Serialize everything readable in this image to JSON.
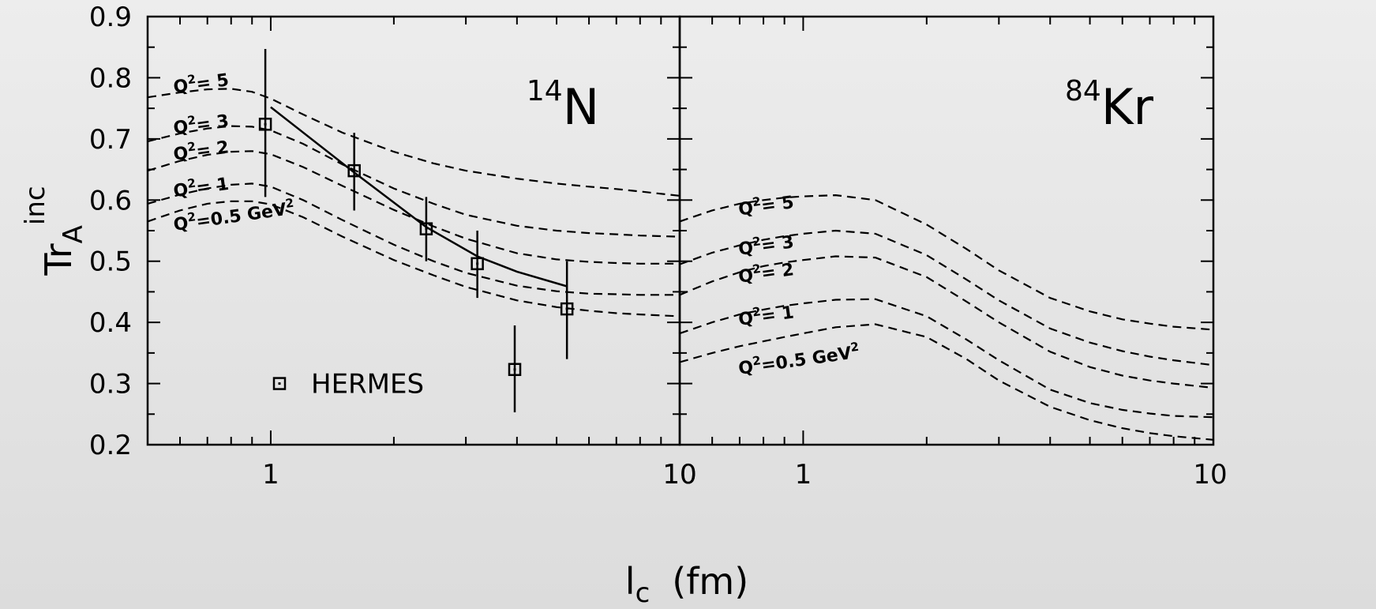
{
  "chart_data": [
    {
      "panel": "left",
      "type": "line",
      "annotation_base": "N",
      "annotation_sup": "14",
      "xscale": "log",
      "xlim": [
        0.5,
        10
      ],
      "ylim": [
        0.2,
        0.9
      ],
      "x_tick_labels": [
        "1",
        "10"
      ],
      "y_tick_labels": [
        "0.2",
        "0.3",
        "0.4",
        "0.5",
        "0.6",
        "0.7",
        "0.8",
        "0.9"
      ],
      "ylabel_base": "Tr",
      "ylabel_sub": "A",
      "ylabel_sup": "inc",
      "legend_label": "HERMES",
      "curves": [
        {
          "q2": "5",
          "label_prefix": "Q",
          "label_sup": "2",
          "label_suffix": "=  5",
          "x": [
            0.5,
            0.6,
            0.7,
            0.8,
            0.9,
            1.0,
            1.2,
            1.5,
            2,
            2.5,
            3,
            4,
            5,
            6,
            7,
            8,
            10
          ],
          "y": [
            0.768,
            0.776,
            0.781,
            0.782,
            0.777,
            0.766,
            0.74,
            0.71,
            0.679,
            0.66,
            0.648,
            0.635,
            0.627,
            0.622,
            0.618,
            0.614,
            0.607
          ]
        },
        {
          "q2": "3",
          "label_prefix": "Q",
          "label_sup": "2",
          "label_suffix": "=  3",
          "x": [
            0.5,
            0.6,
            0.7,
            0.8,
            0.9,
            1.0,
            1.2,
            1.5,
            2,
            2.5,
            3,
            4,
            5,
            6,
            7,
            8,
            10
          ],
          "y": [
            0.696,
            0.709,
            0.717,
            0.721,
            0.72,
            0.714,
            0.692,
            0.658,
            0.619,
            0.594,
            0.576,
            0.558,
            0.55,
            0.546,
            0.544,
            0.542,
            0.54
          ]
        },
        {
          "q2": "2",
          "label_prefix": "Q",
          "label_sup": "2",
          "label_suffix": "=  2",
          "x": [
            0.5,
            0.6,
            0.7,
            0.8,
            0.9,
            1.0,
            1.2,
            1.5,
            2,
            2.5,
            3,
            4,
            5,
            6,
            7,
            8,
            10
          ],
          "y": [
            0.648,
            0.664,
            0.674,
            0.679,
            0.68,
            0.675,
            0.654,
            0.623,
            0.584,
            0.557,
            0.537,
            0.513,
            0.503,
            0.499,
            0.497,
            0.496,
            0.496
          ]
        },
        {
          "q2": "1",
          "label_prefix": "Q",
          "label_sup": "2",
          "label_suffix": "=  1",
          "x": [
            0.5,
            0.6,
            0.7,
            0.8,
            0.9,
            1.0,
            1.2,
            1.5,
            2,
            2.5,
            3,
            4,
            5,
            6,
            7,
            8,
            10
          ],
          "y": [
            0.594,
            0.609,
            0.619,
            0.625,
            0.627,
            0.622,
            0.6,
            0.567,
            0.527,
            0.5,
            0.481,
            0.46,
            0.451,
            0.447,
            0.446,
            0.445,
            0.445
          ]
        },
        {
          "q2": "0.5",
          "label_prefix": "Q",
          "label_sup": "2",
          "label_suffix": "=0.5  GeV",
          "label_unit_sup": "2",
          "x": [
            0.5,
            0.6,
            0.7,
            0.8,
            0.9,
            1.0,
            1.2,
            1.5,
            2,
            2.5,
            3,
            4,
            5,
            6,
            7,
            8,
            10
          ],
          "y": [
            0.565,
            0.583,
            0.594,
            0.598,
            0.598,
            0.593,
            0.572,
            0.54,
            0.502,
            0.477,
            0.458,
            0.436,
            0.425,
            0.419,
            0.415,
            0.413,
            0.41
          ]
        }
      ],
      "solid_line": {
        "x": [
          1.0,
          1.6,
          2.4,
          3.2,
          4.0,
          5.3
        ],
        "y": [
          0.752,
          0.645,
          0.556,
          0.508,
          0.483,
          0.459
        ]
      },
      "hermes_points": {
        "x": [
          0.97,
          1.6,
          2.4,
          3.2,
          3.95,
          5.3
        ],
        "y": [
          0.724,
          0.648,
          0.553,
          0.496,
          0.323,
          0.422
        ],
        "err_low": [
          0.605,
          0.583,
          0.5,
          0.44,
          0.253,
          0.34
        ],
        "err_high": [
          0.847,
          0.71,
          0.605,
          0.55,
          0.395,
          0.5
        ]
      }
    },
    {
      "panel": "right",
      "type": "line",
      "annotation_base": "Kr",
      "annotation_sup": "84",
      "xscale": "log",
      "xlim": [
        0.5,
        10
      ],
      "ylim": [
        0.2,
        0.9
      ],
      "x_tick_labels": [
        "10",
        "1",
        "10"
      ],
      "curves": [
        {
          "q2": "5",
          "label_prefix": "Q",
          "label_sup": "2",
          "label_suffix": "=  5",
          "x": [
            0.5,
            0.6,
            0.7,
            0.8,
            0.9,
            1.0,
            1.2,
            1.5,
            2,
            2.5,
            3,
            4,
            5,
            6,
            7,
            8,
            10
          ],
          "y": [
            0.565,
            0.583,
            0.594,
            0.6,
            0.604,
            0.606,
            0.608,
            0.6,
            0.56,
            0.52,
            0.485,
            0.44,
            0.418,
            0.405,
            0.398,
            0.393,
            0.388
          ]
        },
        {
          "q2": "3",
          "label_prefix": "Q",
          "label_sup": "2",
          "label_suffix": "=  3",
          "x": [
            0.5,
            0.6,
            0.7,
            0.8,
            0.9,
            1.0,
            1.2,
            1.5,
            2,
            2.5,
            3,
            4,
            5,
            6,
            7,
            8,
            10
          ],
          "y": [
            0.495,
            0.514,
            0.526,
            0.535,
            0.541,
            0.545,
            0.55,
            0.545,
            0.51,
            0.47,
            0.436,
            0.39,
            0.367,
            0.353,
            0.344,
            0.338,
            0.33
          ]
        },
        {
          "q2": "2",
          "label_prefix": "Q",
          "label_sup": "2",
          "label_suffix": "=  2",
          "x": [
            0.5,
            0.6,
            0.7,
            0.8,
            0.9,
            1.0,
            1.2,
            1.5,
            2,
            2.5,
            3,
            4,
            5,
            6,
            7,
            8,
            10
          ],
          "y": [
            0.445,
            0.467,
            0.482,
            0.492,
            0.498,
            0.502,
            0.508,
            0.506,
            0.474,
            0.434,
            0.4,
            0.352,
            0.327,
            0.313,
            0.305,
            0.3,
            0.293
          ]
        },
        {
          "q2": "1",
          "label_prefix": "Q",
          "label_sup": "2",
          "label_suffix": "=  1",
          "x": [
            0.5,
            0.6,
            0.7,
            0.8,
            0.9,
            1.0,
            1.2,
            1.5,
            2,
            2.5,
            3,
            4,
            5,
            6,
            7,
            8,
            10
          ],
          "y": [
            0.382,
            0.4,
            0.413,
            0.421,
            0.427,
            0.431,
            0.437,
            0.438,
            0.41,
            0.372,
            0.338,
            0.29,
            0.268,
            0.257,
            0.251,
            0.247,
            0.245
          ]
        },
        {
          "q2": "0.5",
          "label_prefix": "Q",
          "label_sup": "2",
          "label_suffix": "=0.5  GeV",
          "label_unit_sup": "2",
          "x": [
            0.5,
            0.6,
            0.7,
            0.8,
            0.9,
            1.0,
            1.2,
            1.5,
            2,
            2.5,
            3,
            4,
            5,
            6,
            7,
            8,
            10
          ],
          "y": [
            0.335,
            0.35,
            0.361,
            0.369,
            0.376,
            0.382,
            0.392,
            0.397,
            0.376,
            0.34,
            0.305,
            0.262,
            0.24,
            0.227,
            0.219,
            0.214,
            0.208
          ]
        }
      ]
    }
  ],
  "xlabel_base": "l",
  "xlabel_sub": "c",
  "xlabel_unit": "(fm)"
}
